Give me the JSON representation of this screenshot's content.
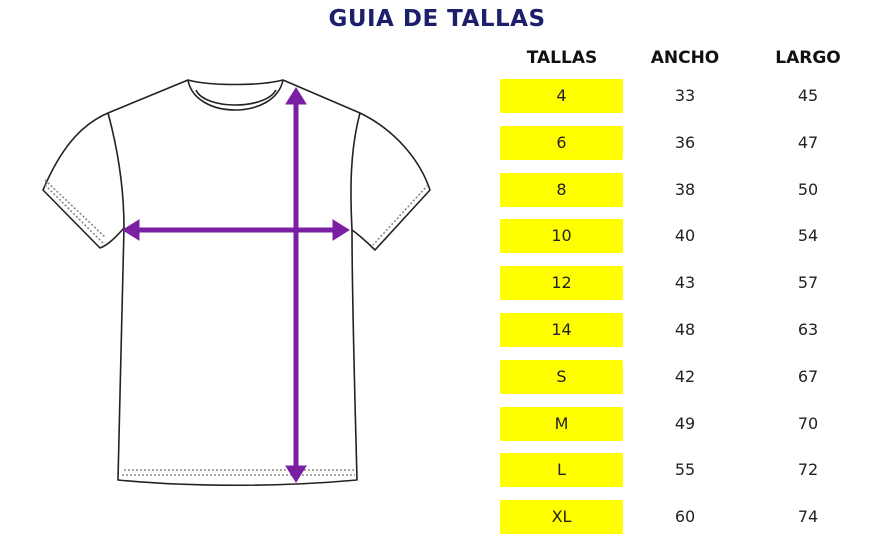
{
  "title": "GUIA DE TALLAS",
  "table": {
    "headers": [
      "TALLAS",
      "ANCHO",
      "LARGO"
    ],
    "rows": [
      {
        "talla": "4",
        "ancho": "33",
        "largo": "45"
      },
      {
        "talla": "6",
        "ancho": "36",
        "largo": "47"
      },
      {
        "talla": "8",
        "ancho": "38",
        "largo": "50"
      },
      {
        "talla": "10",
        "ancho": "40",
        "largo": "54"
      },
      {
        "talla": "12",
        "ancho": "43",
        "largo": "57"
      },
      {
        "talla": "14",
        "ancho": "48",
        "largo": "63"
      },
      {
        "talla": "S",
        "ancho": "42",
        "largo": "67"
      },
      {
        "talla": "M",
        "ancho": "49",
        "largo": "70"
      },
      {
        "talla": "L",
        "ancho": "55",
        "largo": "72"
      },
      {
        "talla": "XL",
        "ancho": "60",
        "largo": "74"
      }
    ]
  },
  "colors": {
    "title": "#1c1f6b",
    "highlight": "#ffff00",
    "arrows": "#7a1fa2"
  },
  "illustration": {
    "icon": "t-shirt-measurement-diagram"
  }
}
